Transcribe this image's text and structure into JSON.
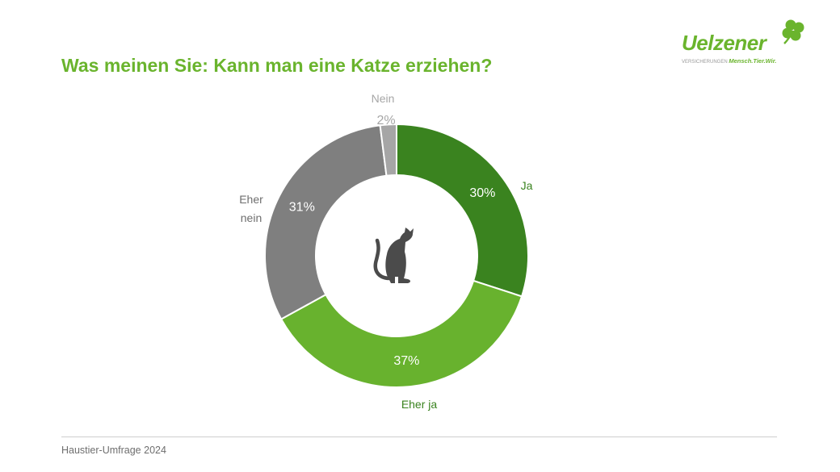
{
  "title": "Was meinen Sie: Kann man eine Katze erziehen?",
  "logo": {
    "wordmark": "Uelzener",
    "tagline_prefix": "VERSICHERUNGEN",
    "tagline": "Mensch.Tier.Wir."
  },
  "footer": {
    "source": "Haustier-Umfrage 2024"
  },
  "chart_data": {
    "type": "pie",
    "variant": "donut",
    "title": "",
    "center_icon": "cat-icon",
    "slices": [
      {
        "label": "Ja",
        "value": 30,
        "value_label": "30%",
        "color": "#3a831f",
        "value_color": "#ffffff",
        "label_color": "#3a831f"
      },
      {
        "label": "Eher ja",
        "value": 37,
        "value_label": "37%",
        "color": "#68b22e",
        "value_color": "#ffffff",
        "label_color": "#3a831f"
      },
      {
        "label": "Eher nein",
        "value": 31,
        "value_label": "31%",
        "color": "#7f7f7f",
        "value_color": "#ffffff",
        "label_color": "#6e6e6e"
      },
      {
        "label": "Nein",
        "value": 2,
        "value_label": "2%",
        "color": "#a6a6a6",
        "value_color": "#a6a6a6",
        "label_color": "#a6a6a6"
      }
    ]
  }
}
